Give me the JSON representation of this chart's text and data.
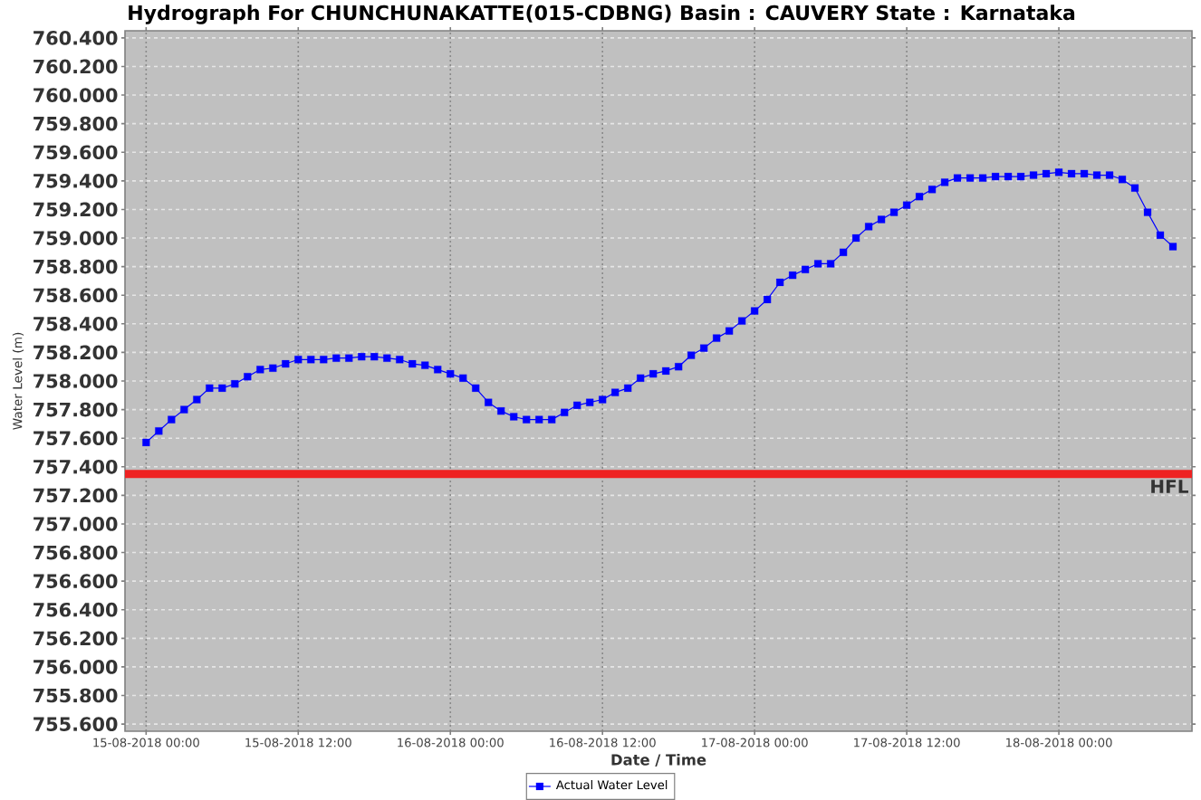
{
  "chart_data": {
    "type": "line",
    "title": "Hydrograph For CHUNCHUNAKATTE(015-CDBNG) Basin : CAUVERY State : Karnataka",
    "xlabel": "Date / Time",
    "ylabel": "Water Level (m)",
    "x": [
      "2018-08-15T00:00",
      "2018-08-15T01:00",
      "2018-08-15T02:00",
      "2018-08-15T03:00",
      "2018-08-15T04:00",
      "2018-08-15T05:00",
      "2018-08-15T06:00",
      "2018-08-15T07:00",
      "2018-08-15T08:00",
      "2018-08-15T09:00",
      "2018-08-15T10:00",
      "2018-08-15T11:00",
      "2018-08-15T12:00",
      "2018-08-15T13:00",
      "2018-08-15T14:00",
      "2018-08-15T15:00",
      "2018-08-15T16:00",
      "2018-08-15T17:00",
      "2018-08-15T18:00",
      "2018-08-15T19:00",
      "2018-08-15T20:00",
      "2018-08-15T21:00",
      "2018-08-15T22:00",
      "2018-08-15T23:00",
      "2018-08-16T00:00",
      "2018-08-16T01:00",
      "2018-08-16T02:00",
      "2018-08-16T03:00",
      "2018-08-16T04:00",
      "2018-08-16T05:00",
      "2018-08-16T06:00",
      "2018-08-16T07:00",
      "2018-08-16T08:00",
      "2018-08-16T09:00",
      "2018-08-16T10:00",
      "2018-08-16T11:00",
      "2018-08-16T12:00",
      "2018-08-16T13:00",
      "2018-08-16T14:00",
      "2018-08-16T15:00",
      "2018-08-16T16:00",
      "2018-08-16T17:00",
      "2018-08-16T18:00",
      "2018-08-16T19:00",
      "2018-08-16T20:00",
      "2018-08-16T21:00",
      "2018-08-16T22:00",
      "2018-08-16T23:00",
      "2018-08-17T00:00",
      "2018-08-17T01:00",
      "2018-08-17T02:00",
      "2018-08-17T03:00",
      "2018-08-17T04:00",
      "2018-08-17T05:00",
      "2018-08-17T06:00",
      "2018-08-17T07:00",
      "2018-08-17T08:00",
      "2018-08-17T09:00",
      "2018-08-17T10:00",
      "2018-08-17T11:00",
      "2018-08-17T12:00",
      "2018-08-17T13:00",
      "2018-08-17T14:00",
      "2018-08-17T15:00",
      "2018-08-17T16:00",
      "2018-08-17T17:00",
      "2018-08-17T18:00",
      "2018-08-17T19:00",
      "2018-08-17T20:00",
      "2018-08-17T21:00",
      "2018-08-17T22:00",
      "2018-08-17T23:00",
      "2018-08-18T00:00",
      "2018-08-18T01:00",
      "2018-08-18T02:00",
      "2018-08-18T03:00",
      "2018-08-18T04:00",
      "2018-08-18T05:00",
      "2018-08-18T06:00",
      "2018-08-18T07:00",
      "2018-08-18T08:00",
      "2018-08-18T09:00"
    ],
    "series": [
      {
        "name": "Actual Water Level",
        "color": "#0000ff",
        "values": [
          757.57,
          757.65,
          757.73,
          757.8,
          757.87,
          757.95,
          757.95,
          757.98,
          758.03,
          758.08,
          758.09,
          758.12,
          758.15,
          758.15,
          758.15,
          758.16,
          758.16,
          758.17,
          758.17,
          758.16,
          758.15,
          758.12,
          758.11,
          758.08,
          758.05,
          758.02,
          757.95,
          757.85,
          757.79,
          757.75,
          757.73,
          757.73,
          757.73,
          757.78,
          757.83,
          757.85,
          757.87,
          757.92,
          757.95,
          758.02,
          758.05,
          758.07,
          758.1,
          758.18,
          758.23,
          758.3,
          758.35,
          758.42,
          758.49,
          758.57,
          758.69,
          758.74,
          758.78,
          758.82,
          758.82,
          758.9,
          759.0,
          759.08,
          759.13,
          759.18,
          759.23,
          759.29,
          759.34,
          759.39,
          759.42,
          759.42,
          759.42,
          759.43,
          759.43,
          759.43,
          759.44,
          759.45,
          759.46,
          759.45,
          759.45,
          759.44,
          759.44,
          759.41,
          759.35,
          759.18,
          759.02,
          758.94
        ]
      }
    ],
    "xlim": [
      "2018-08-14T22:20",
      "2018-08-18T10:30"
    ],
    "xticks": [
      {
        "value": "2018-08-15T00:00",
        "label": "15-08-2018 00:00"
      },
      {
        "value": "2018-08-15T12:00",
        "label": "15-08-2018 12:00"
      },
      {
        "value": "2018-08-16T00:00",
        "label": "16-08-2018 00:00"
      },
      {
        "value": "2018-08-16T12:00",
        "label": "16-08-2018 12:00"
      },
      {
        "value": "2018-08-17T00:00",
        "label": "17-08-2018 00:00"
      },
      {
        "value": "2018-08-17T12:00",
        "label": "17-08-2018 12:00"
      },
      {
        "value": "2018-08-18T00:00",
        "label": "18-08-2018 00:00"
      }
    ],
    "ylim": [
      755.55,
      760.45
    ],
    "yticks": [
      {
        "value": 755.6,
        "label": "755.600"
      },
      {
        "value": 755.8,
        "label": "755.800"
      },
      {
        "value": 756.0,
        "label": "756.000"
      },
      {
        "value": 756.2,
        "label": "756.200"
      },
      {
        "value": 756.4,
        "label": "756.400"
      },
      {
        "value": 756.6,
        "label": "756.600"
      },
      {
        "value": 756.8,
        "label": "756.800"
      },
      {
        "value": 757.0,
        "label": "757.000"
      },
      {
        "value": 757.2,
        "label": "757.200"
      },
      {
        "value": 757.4,
        "label": "757.400"
      },
      {
        "value": 757.6,
        "label": "757.600"
      },
      {
        "value": 757.8,
        "label": "757.800"
      },
      {
        "value": 758.0,
        "label": "758.000"
      },
      {
        "value": 758.2,
        "label": "758.200"
      },
      {
        "value": 758.4,
        "label": "758.400"
      },
      {
        "value": 758.6,
        "label": "758.600"
      },
      {
        "value": 758.8,
        "label": "758.800"
      },
      {
        "value": 759.0,
        "label": "759.000"
      },
      {
        "value": 759.2,
        "label": "759.200"
      },
      {
        "value": 759.4,
        "label": "759.400"
      },
      {
        "value": 759.6,
        "label": "759.600"
      },
      {
        "value": 759.8,
        "label": "759.800"
      },
      {
        "value": 760.0,
        "label": "760.000"
      },
      {
        "value": 760.2,
        "label": "760.200"
      },
      {
        "value": 760.4,
        "label": "760.400"
      }
    ],
    "ref_lines": [
      {
        "axis": "y",
        "value": 757.35,
        "label": "HFL",
        "color": "#ee2222"
      }
    ],
    "grid": true,
    "legend": "bottom",
    "marker": "square"
  }
}
